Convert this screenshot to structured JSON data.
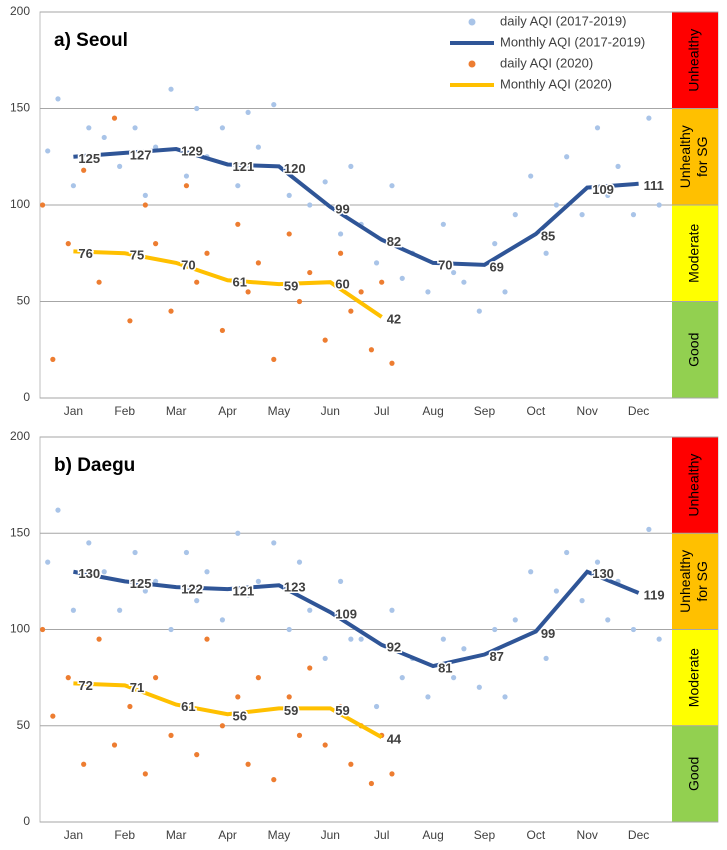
{
  "chart_data": [
    {
      "type": "line",
      "title": "a) Seoul",
      "legend": true,
      "legend_position": "upper right",
      "grid": true,
      "xlim": [
        0.35,
        12.65
      ],
      "xticks": [
        {
          "value": 1,
          "label": "Jan"
        },
        {
          "value": 2,
          "label": "Feb"
        },
        {
          "value": 3,
          "label": "Mar"
        },
        {
          "value": 4,
          "label": "Apr"
        },
        {
          "value": 5,
          "label": "May"
        },
        {
          "value": 6,
          "label": "Jun"
        },
        {
          "value": 7,
          "label": "Jul"
        },
        {
          "value": 8,
          "label": "Aug"
        },
        {
          "value": 9,
          "label": "Sep"
        },
        {
          "value": 10,
          "label": "Oct"
        },
        {
          "value": 11,
          "label": "Nov"
        },
        {
          "value": 12,
          "label": "Dec"
        }
      ],
      "ylim": [
        0,
        200
      ],
      "yticks": [
        0,
        50,
        100,
        150,
        200
      ],
      "bands": [
        {
          "label": [
            "Good"
          ],
          "from": 0,
          "to": 50,
          "color": "#92d050"
        },
        {
          "label": [
            "Moderate"
          ],
          "from": 50,
          "to": 100,
          "color": "#ffff00"
        },
        {
          "label": [
            "Unhealthy",
            "for SG"
          ],
          "from": 100,
          "to": 150,
          "color": "#ffc000"
        },
        {
          "label": [
            "Unhealthy"
          ],
          "from": 150,
          "to": 200,
          "color": "#ff0000"
        }
      ],
      "series": [
        {
          "name": "daily AQI (2017-2019)",
          "type": "scatter",
          "color": "#a9c4e8",
          "x": [
            0.5,
            0.7,
            1.0,
            1.3,
            1.6,
            1.9,
            2.2,
            2.4,
            2.6,
            2.9,
            3.2,
            3.4,
            3.6,
            3.9,
            4.2,
            4.4,
            4.6,
            4.9,
            5.2,
            5.4,
            5.6,
            5.9,
            6.2,
            6.4,
            6.6,
            6.9,
            7.2,
            7.4,
            7.6,
            7.9,
            8.2,
            8.4,
            8.6,
            8.9,
            9.2,
            9.4,
            9.6,
            9.9,
            10.2,
            10.4,
            10.6,
            10.9,
            11.2,
            11.4,
            11.6,
            11.9,
            12.2,
            12.4
          ],
          "values": [
            128,
            155,
            110,
            140,
            135,
            120,
            140,
            105,
            130,
            160,
            115,
            150,
            125,
            140,
            110,
            148,
            130,
            152,
            105,
            118,
            100,
            112,
            85,
            120,
            90,
            70,
            110,
            62,
            75,
            55,
            90,
            65,
            60,
            45,
            80,
            55,
            95,
            115,
            75,
            100,
            125,
            95,
            140,
            105,
            120,
            95,
            145,
            100
          ]
        },
        {
          "name": "Monthly AQI (2017-2019)",
          "type": "line",
          "color": "#2f5597",
          "label_color": "#1f3864",
          "x": [
            1,
            2,
            3,
            4,
            5,
            6,
            7,
            8,
            9,
            10,
            11,
            12
          ],
          "values": [
            125,
            127,
            129,
            121,
            120,
            99,
            82,
            70,
            69,
            85,
            109,
            111
          ]
        },
        {
          "name": "daily AQI (2020)",
          "type": "scatter",
          "color": "#ed7d31",
          "x": [
            0.4,
            0.6,
            0.9,
            1.2,
            1.5,
            1.8,
            2.1,
            2.4,
            2.6,
            2.9,
            3.2,
            3.4,
            3.6,
            3.9,
            4.2,
            4.4,
            4.6,
            4.9,
            5.2,
            5.4,
            5.6,
            5.9,
            6.2,
            6.4,
            6.6,
            6.8,
            7.0,
            7.2
          ],
          "values": [
            100,
            20,
            80,
            118,
            60,
            145,
            40,
            100,
            80,
            45,
            110,
            60,
            75,
            35,
            90,
            55,
            70,
            20,
            85,
            50,
            65,
            30,
            75,
            45,
            55,
            25,
            60,
            18
          ]
        },
        {
          "name": "Monthly AQI (2020)",
          "type": "line",
          "color": "#ffc000",
          "label_color": "#843c0c",
          "x": [
            1,
            2,
            3,
            4,
            5,
            6,
            7
          ],
          "values": [
            76,
            75,
            70,
            61,
            59,
            60,
            42
          ]
        }
      ]
    },
    {
      "type": "line",
      "title": "b) Daegu",
      "legend": false,
      "grid": true,
      "xlim": [
        0.35,
        12.65
      ],
      "xticks": [
        {
          "value": 1,
          "label": "Jan"
        },
        {
          "value": 2,
          "label": "Feb"
        },
        {
          "value": 3,
          "label": "Mar"
        },
        {
          "value": 4,
          "label": "Apr"
        },
        {
          "value": 5,
          "label": "May"
        },
        {
          "value": 6,
          "label": "Jun"
        },
        {
          "value": 7,
          "label": "Jul"
        },
        {
          "value": 8,
          "label": "Aug"
        },
        {
          "value": 9,
          "label": "Sep"
        },
        {
          "value": 10,
          "label": "Oct"
        },
        {
          "value": 11,
          "label": "Nov"
        },
        {
          "value": 12,
          "label": "Dec"
        }
      ],
      "ylim": [
        0,
        200
      ],
      "yticks": [
        0,
        50,
        100,
        150,
        200
      ],
      "bands": [
        {
          "label": [
            "Good"
          ],
          "from": 0,
          "to": 50,
          "color": "#92d050"
        },
        {
          "label": [
            "Moderate"
          ],
          "from": 50,
          "to": 100,
          "color": "#ffff00"
        },
        {
          "label": [
            "Unhealthy",
            "for SG"
          ],
          "from": 100,
          "to": 150,
          "color": "#ffc000"
        },
        {
          "label": [
            "Unhealthy"
          ],
          "from": 150,
          "to": 200,
          "color": "#ff0000"
        }
      ],
      "series": [
        {
          "type": "scatter",
          "color": "#a9c4e8",
          "x": [
            0.5,
            0.7,
            1.0,
            1.3,
            1.6,
            1.9,
            2.2,
            2.4,
            2.6,
            2.9,
            3.2,
            3.4,
            3.6,
            3.9,
            4.2,
            4.4,
            4.6,
            4.9,
            5.2,
            5.4,
            5.6,
            5.9,
            6.2,
            6.4,
            6.6,
            6.9,
            7.2,
            7.4,
            7.6,
            7.9,
            8.2,
            8.4,
            8.6,
            8.9,
            9.2,
            9.4,
            9.6,
            9.9,
            10.2,
            10.4,
            10.6,
            10.9,
            11.2,
            11.4,
            11.6,
            11.9,
            12.2,
            12.4
          ],
          "values": [
            135,
            162,
            110,
            145,
            130,
            110,
            140,
            120,
            125,
            100,
            140,
            115,
            130,
            105,
            150,
            118,
            125,
            145,
            100,
            135,
            110,
            85,
            125,
            95,
            95,
            60,
            110,
            75,
            85,
            65,
            95,
            75,
            90,
            70,
            100,
            65,
            105,
            130,
            85,
            120,
            140,
            115,
            135,
            105,
            125,
            100,
            152,
            95
          ]
        },
        {
          "type": "line",
          "color": "#2f5597",
          "label_color": "#1f3864",
          "x": [
            1,
            2,
            3,
            4,
            5,
            6,
            7,
            8,
            9,
            10,
            11,
            12
          ],
          "values": [
            130,
            125,
            122,
            121,
            123,
            109,
            92,
            81,
            87,
            99,
            130,
            119
          ]
        },
        {
          "type": "scatter",
          "color": "#ed7d31",
          "x": [
            0.4,
            0.6,
            0.9,
            1.2,
            1.5,
            1.8,
            2.1,
            2.4,
            2.6,
            2.9,
            3.2,
            3.4,
            3.6,
            3.9,
            4.2,
            4.4,
            4.6,
            4.9,
            5.2,
            5.4,
            5.6,
            5.9,
            6.2,
            6.4,
            6.6,
            6.8,
            7.0,
            7.2
          ],
          "values": [
            100,
            55,
            75,
            30,
            95,
            40,
            60,
            25,
            75,
            45,
            60,
            35,
            95,
            50,
            65,
            30,
            75,
            22,
            65,
            45,
            80,
            40,
            60,
            30,
            50,
            20,
            45,
            25
          ]
        },
        {
          "type": "line",
          "color": "#ffc000",
          "label_color": "#843c0c",
          "x": [
            1,
            2,
            3,
            4,
            5,
            6,
            7
          ],
          "values": [
            72,
            71,
            61,
            56,
            59,
            59,
            44
          ]
        }
      ]
    }
  ]
}
